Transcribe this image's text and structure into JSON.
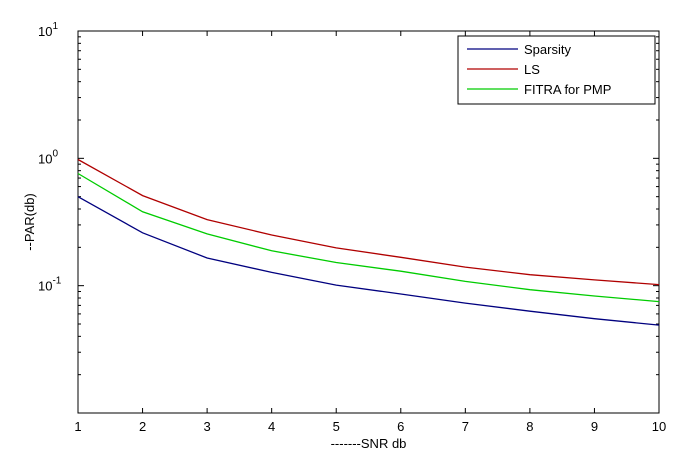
{
  "chart_data": {
    "type": "line",
    "xlabel": "-------SNR db",
    "ylabel": "--PAR(db)",
    "xlim": [
      1,
      10
    ],
    "ylim": [
      0.01,
      10
    ],
    "yscale": "log",
    "x_ticks": [
      "1",
      "2",
      "3",
      "4",
      "5",
      "6",
      "7",
      "8",
      "9",
      "10"
    ],
    "y_ticks": [
      {
        "value": 0.1,
        "base": "10",
        "exp": "-1"
      },
      {
        "value": 1,
        "base": "10",
        "exp": "0"
      },
      {
        "value": 10,
        "base": "10",
        "exp": "1"
      }
    ],
    "grid": false,
    "legend_position": "top-right",
    "x": [
      1,
      2,
      3,
      4,
      5,
      6,
      7,
      8,
      9,
      10
    ],
    "series": [
      {
        "name": "Sparsity",
        "color": "#00007f",
        "values": [
          0.5,
          0.26,
          0.165,
          0.127,
          0.101,
          0.086,
          0.073,
          0.063,
          0.055,
          0.049
        ]
      },
      {
        "name": "LS",
        "color": "#b00000",
        "values": [
          0.98,
          0.51,
          0.33,
          0.25,
          0.198,
          0.167,
          0.14,
          0.122,
          0.111,
          0.102
        ]
      },
      {
        "name": "FITRA for PMP",
        "color": "#00cc00",
        "values": [
          0.76,
          0.38,
          0.255,
          0.188,
          0.152,
          0.13,
          0.108,
          0.093,
          0.083,
          0.075
        ]
      }
    ]
  }
}
